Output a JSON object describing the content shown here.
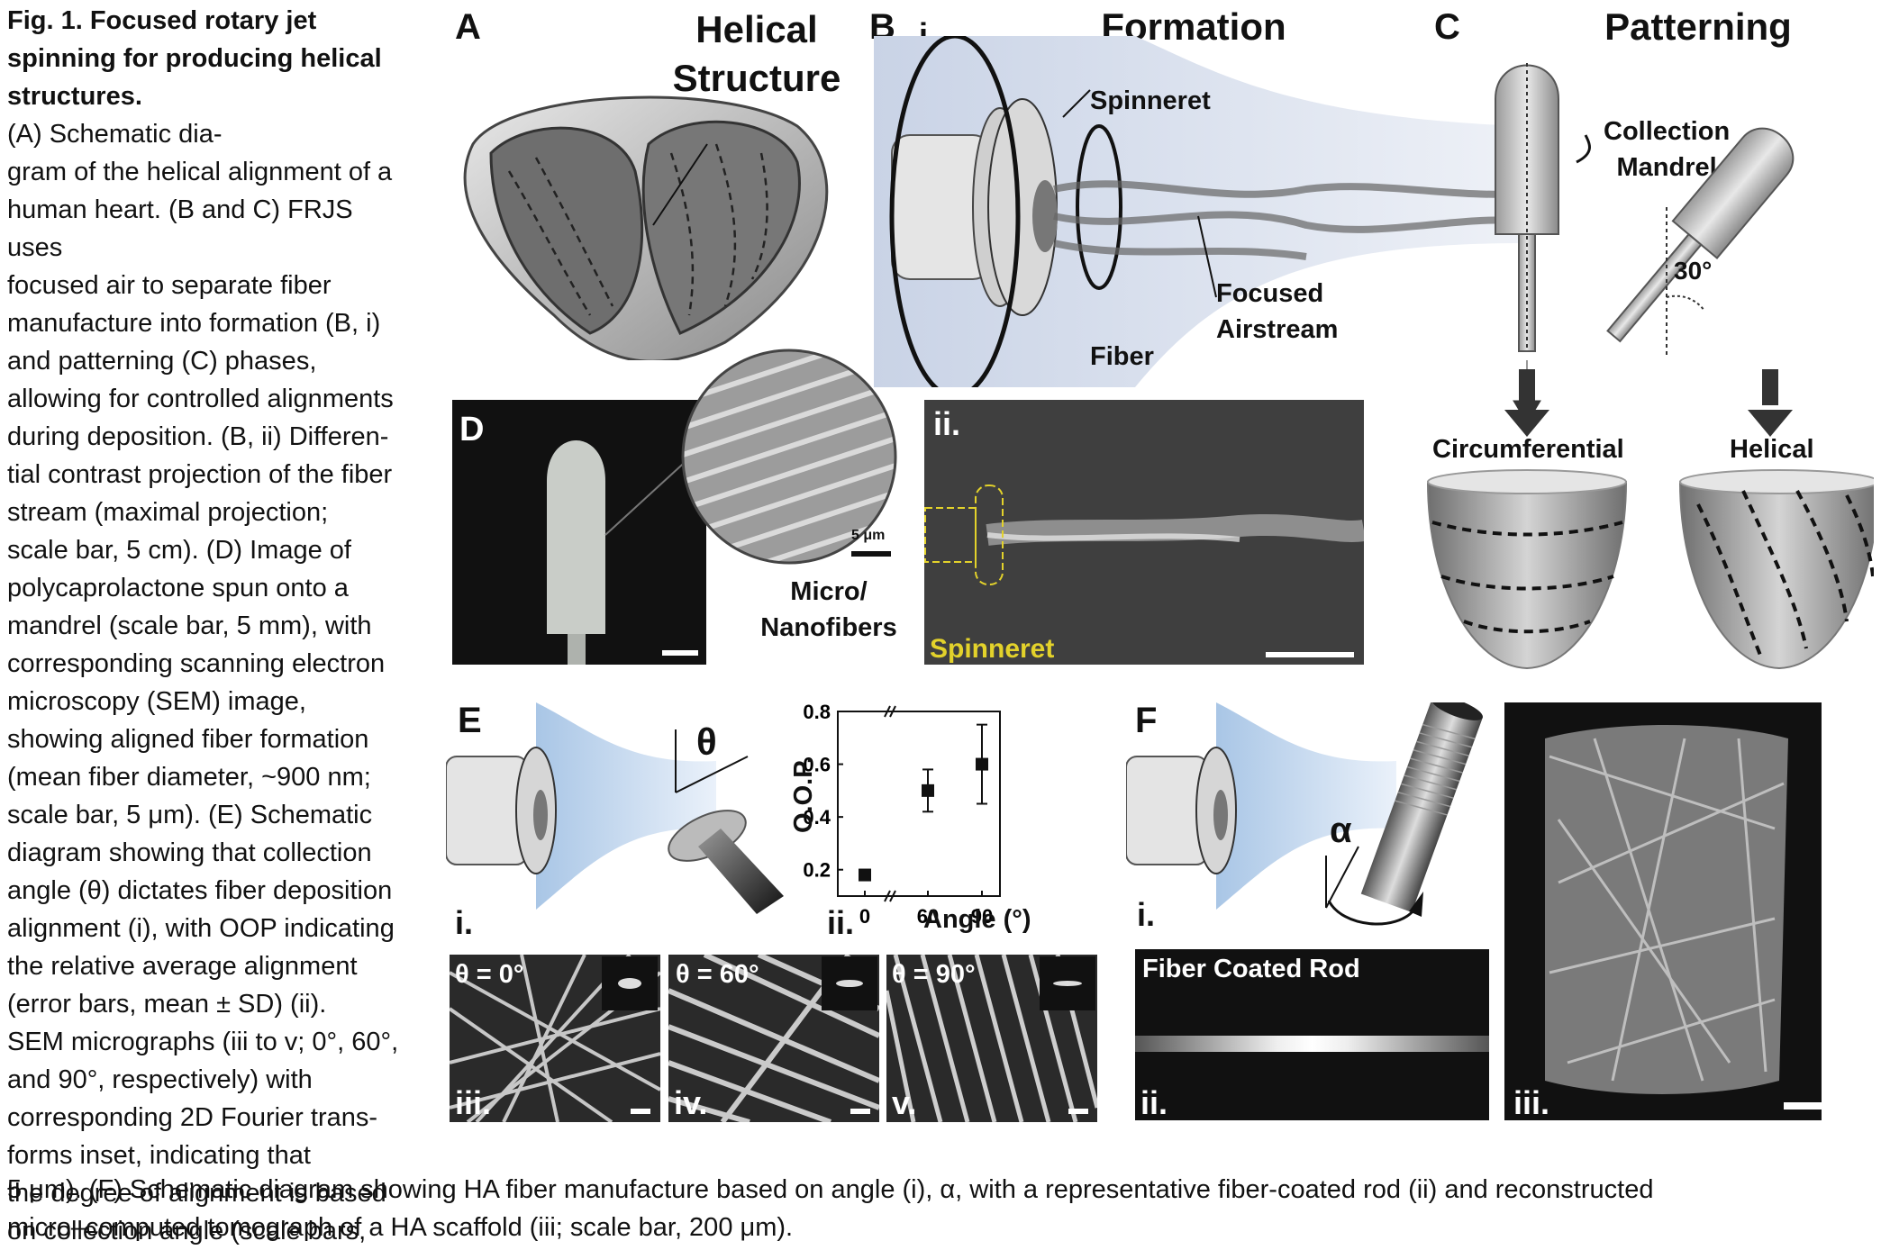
{
  "caption": {
    "fig_label": "Fig. 1. Focused rotary jet spinning for producing helical structures.",
    "lines": [
      "(A) Schematic dia-",
      "gram of the helical alignment of a",
      "human heart. (B and C) FRJS uses",
      "focused air to separate fiber",
      "manufacture into formation (B, i)",
      "and patterning (C) phases,",
      "allowing for controlled alignments",
      "during deposition. (B, ii) Differen-",
      "tial contrast projection of the fiber",
      "stream (maximal projection;",
      "scale bar, 5 cm). (D) Image of",
      "polycaprolactone spun onto a",
      "mandrel (scale bar, 5 mm), with",
      "corresponding scanning electron",
      "microscopy (SEM) image,",
      "showing aligned fiber formation",
      "(mean fiber diameter, ~900 nm;",
      "scale bar, 5 μm). (E) Schematic",
      "diagram showing that collection",
      "angle (θ) dictates fiber deposition",
      "alignment (i), with OOP indicating",
      "the relative average alignment",
      "(error bars, mean ± SD) (ii).",
      "SEM micrographs (iii to v; 0°, 60°,",
      "and 90°, respectively) with",
      "corresponding 2D Fourier trans-",
      "forms inset, indicating that",
      "the degree of alignment is based",
      "on collection angle (scale bars,"
    ],
    "bottom_lines": [
      "5 μm). (F) Schematic diagram showing HA fiber manufacture based on angle (i), α, with a representative fiber-coated rod (ii) and reconstructed",
      "micro–computed tomograph of a HA scaffold (iii; scale bar, 200 μm)."
    ]
  },
  "panels": {
    "A": {
      "label": "A",
      "title": "Helical\nStructure"
    },
    "B": {
      "label": "B",
      "sub_i": "i.",
      "title": "Formation",
      "spinneret": "Spinneret",
      "focused_airstream": "Focused\nAirstream",
      "fiber": "Fiber"
    },
    "C": {
      "label": "C",
      "title": "Patterning",
      "collection_mandrel": "Collection\nMandrel",
      "angle": "30°",
      "circumferential": "Circumferential",
      "helical": "Helical"
    },
    "D": {
      "label": "D",
      "scale_text": "5 μm",
      "micro_nano": "Micro/\nNanofibers"
    },
    "Bii": {
      "label": "ii.",
      "spinneret": "Spinneret"
    },
    "E": {
      "label": "E",
      "theta": "θ",
      "sub_i": "i.",
      "sub_ii": "ii.",
      "sem_labels": [
        "θ = 0°",
        "θ = 60°",
        "θ = 90°"
      ],
      "sem_roman": [
        "iii.",
        "iv.",
        "v."
      ]
    },
    "F": {
      "label": "F",
      "alpha": "α",
      "sub_i": "i.",
      "rod_title": "Fiber Coated Rod",
      "sub_ii": "ii.",
      "sub_iii": "iii."
    }
  },
  "chart_data": {
    "type": "scatter",
    "xlabel": "Angle (°)",
    "ylabel": "O.O.P.",
    "x_ticks": [
      "0",
      "60",
      "90"
    ],
    "y_ticks": [
      "0.2",
      "0.4",
      "0.6",
      "0.8"
    ],
    "ylim": [
      0.1,
      0.8
    ],
    "x_axis_break": true,
    "points": [
      {
        "x": 0,
        "y": 0.18,
        "err": 0.02
      },
      {
        "x": 60,
        "y": 0.5,
        "err": 0.08
      },
      {
        "x": 90,
        "y": 0.6,
        "err": 0.15
      }
    ]
  }
}
